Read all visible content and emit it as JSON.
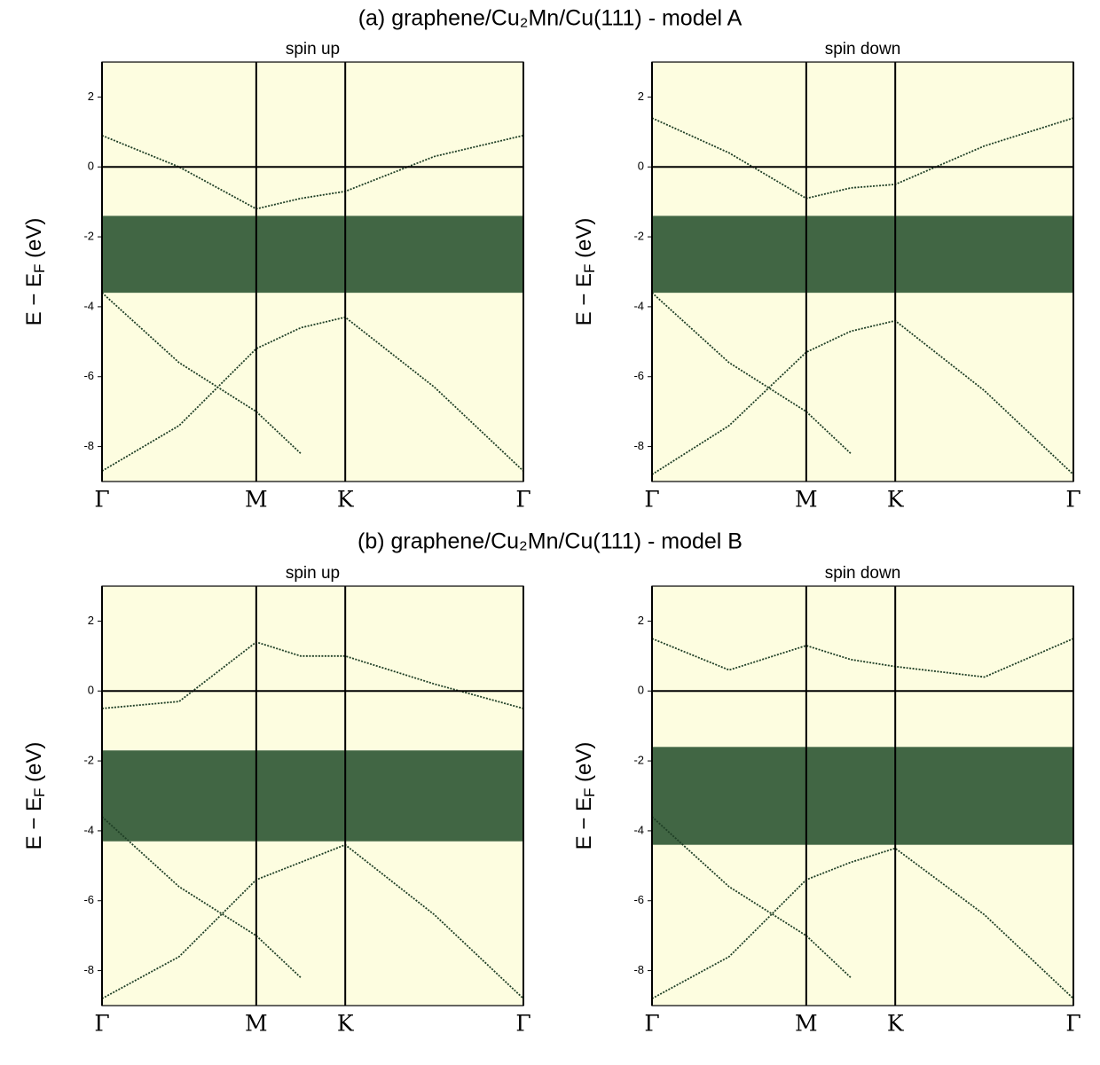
{
  "figure_titles": [
    "(a) graphene/Cu₂Mn/Cu(111) - model A",
    "(b) graphene/Cu₂Mn/Cu(111) - model B"
  ],
  "chart_data": [
    {
      "type": "line",
      "title": "spin up",
      "ylabel": [
        "E − E",
        "F",
        " (eV)"
      ],
      "background": "#fdfde0",
      "xlim": [
        0,
        2.732
      ],
      "ylim": [
        -9,
        3
      ],
      "yticks": [
        -8,
        -6,
        -4,
        -2,
        0,
        2
      ],
      "hline": 0,
      "xticks": [
        {
          "value": 0,
          "label": "Γ"
        },
        {
          "value": 1,
          "label": "M"
        },
        {
          "value": 1.577,
          "label": "K"
        },
        {
          "value": 2.732,
          "label": "Γ"
        }
      ],
      "x": [
        0,
        0.5,
        1,
        1.289,
        1.577,
        2.155,
        2.732
      ],
      "d_band": [
        -3.6,
        -1.4
      ],
      "d_band_color": "#2c5533",
      "series": [
        {
          "color": "#1f3f26",
          "values": [
            -3.6,
            -5.6,
            -7.0,
            -8.2,
            null,
            null,
            null
          ]
        },
        {
          "color": "#1f3f26",
          "values": [
            -8.7,
            -7.4,
            -5.2,
            -4.6,
            -4.3,
            -6.3,
            -8.7
          ]
        },
        {
          "color": "#1f3f26",
          "values": [
            0.9,
            0.0,
            -1.2,
            -0.9,
            -0.7,
            0.3,
            0.9
          ]
        }
      ]
    },
    {
      "type": "line",
      "title": "spin down",
      "ylabel": [
        "E − E",
        "F",
        " (eV)"
      ],
      "background": "#fdfde0",
      "xlim": [
        0,
        2.732
      ],
      "ylim": [
        -9,
        3
      ],
      "yticks": [
        -8,
        -6,
        -4,
        -2,
        0,
        2
      ],
      "hline": 0,
      "xticks": [
        {
          "value": 0,
          "label": "Γ"
        },
        {
          "value": 1,
          "label": "M"
        },
        {
          "value": 1.577,
          "label": "K"
        },
        {
          "value": 2.732,
          "label": "Γ"
        }
      ],
      "x": [
        0,
        0.5,
        1,
        1.289,
        1.577,
        2.155,
        2.732
      ],
      "d_band": [
        -3.6,
        -1.4
      ],
      "d_band_color": "#2c5533",
      "series": [
        {
          "color": "#1f3f26",
          "values": [
            -3.6,
            -5.6,
            -7.0,
            -8.2,
            null,
            null,
            null
          ]
        },
        {
          "color": "#1f3f26",
          "values": [
            -8.8,
            -7.4,
            -5.3,
            -4.7,
            -4.4,
            -6.4,
            -8.8
          ]
        },
        {
          "color": "#1f3f26",
          "values": [
            1.4,
            0.4,
            -0.9,
            -0.6,
            -0.5,
            0.6,
            1.4
          ]
        }
      ]
    },
    {
      "type": "line",
      "title": "spin up",
      "ylabel": [
        "E − E",
        "F",
        " (eV)"
      ],
      "background": "#fdfde0",
      "xlim": [
        0,
        2.732
      ],
      "ylim": [
        -9,
        3
      ],
      "yticks": [
        -8,
        -6,
        -4,
        -2,
        0,
        2
      ],
      "hline": 0,
      "xticks": [
        {
          "value": 0,
          "label": "Γ"
        },
        {
          "value": 1,
          "label": "M"
        },
        {
          "value": 1.577,
          "label": "K"
        },
        {
          "value": 2.732,
          "label": "Γ"
        }
      ],
      "x": [
        0,
        0.5,
        1,
        1.289,
        1.577,
        2.155,
        2.732
      ],
      "d_band": [
        -4.3,
        -1.7
      ],
      "d_band_color": "#2c5533",
      "series": [
        {
          "color": "#1f3f26",
          "values": [
            -3.6,
            -5.6,
            -7.0,
            -8.2,
            null,
            null,
            null
          ]
        },
        {
          "color": "#1f3f26",
          "values": [
            -8.8,
            -7.6,
            -5.4,
            -4.9,
            -4.4,
            -6.4,
            -8.8
          ]
        },
        {
          "color": "#1f3f26",
          "values": [
            -0.5,
            -0.3,
            1.4,
            1.0,
            1.0,
            0.2,
            -0.5
          ]
        }
      ]
    },
    {
      "type": "line",
      "title": "spin down",
      "ylabel": [
        "E − E",
        "F",
        " (eV)"
      ],
      "background": "#fdfde0",
      "xlim": [
        0,
        2.732
      ],
      "ylim": [
        -9,
        3
      ],
      "yticks": [
        -8,
        -6,
        -4,
        -2,
        0,
        2
      ],
      "hline": 0,
      "xticks": [
        {
          "value": 0,
          "label": "Γ"
        },
        {
          "value": 1,
          "label": "M"
        },
        {
          "value": 1.577,
          "label": "K"
        },
        {
          "value": 2.732,
          "label": "Γ"
        }
      ],
      "x": [
        0,
        0.5,
        1,
        1.289,
        1.577,
        2.155,
        2.732
      ],
      "d_band": [
        -4.4,
        -1.6
      ],
      "d_band_color": "#2c5533",
      "series": [
        {
          "color": "#1f3f26",
          "values": [
            -3.6,
            -5.6,
            -7.0,
            -8.2,
            null,
            null,
            null
          ]
        },
        {
          "color": "#1f3f26",
          "values": [
            -8.8,
            -7.6,
            -5.4,
            -4.9,
            -4.5,
            -6.4,
            -8.8
          ]
        },
        {
          "color": "#1f3f26",
          "values": [
            1.5,
            0.6,
            1.3,
            0.9,
            0.7,
            0.4,
            1.5
          ]
        }
      ]
    }
  ]
}
